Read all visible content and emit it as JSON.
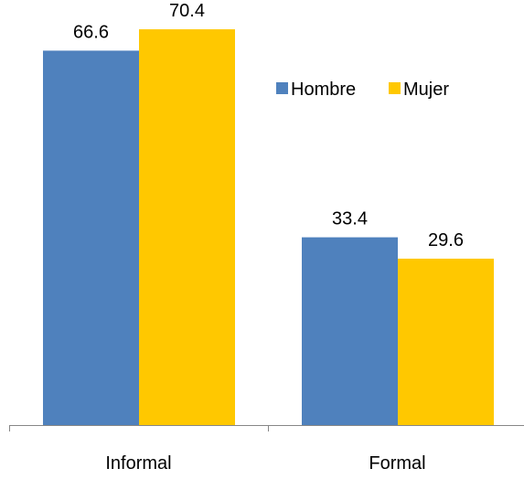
{
  "chart_data": {
    "type": "bar",
    "categories": [
      "Informal",
      "Formal"
    ],
    "series": [
      {
        "name": "Hombre",
        "values": [
          66.6,
          33.4
        ],
        "color": "#4F81BD"
      },
      {
        "name": "Mujer",
        "values": [
          70.4,
          29.6
        ],
        "color": "#FFC800"
      }
    ],
    "title": "",
    "xlabel": "",
    "ylabel": "",
    "ylim": [
      0,
      80
    ],
    "grid": false,
    "legend_position": "top-right",
    "data_labels": true
  }
}
